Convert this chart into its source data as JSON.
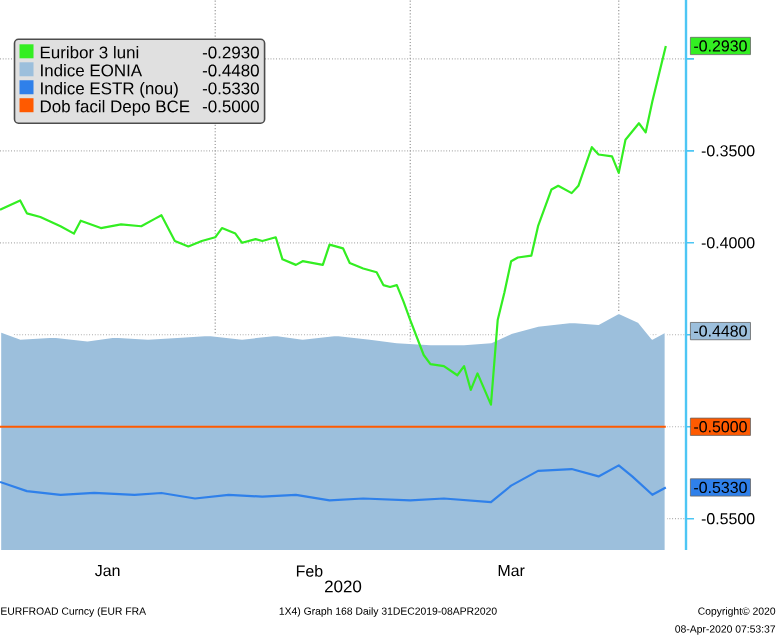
{
  "chart_data": {
    "type": "line",
    "xlabel": "2020",
    "series": [
      {
        "name": "Euribor 3 luni",
        "color": "#33ee22",
        "x": [
          "2019-12-31",
          "2020-01-03",
          "2020-01-04",
          "2020-01-06",
          "2020-01-09",
          "2020-01-11",
          "2020-01-12",
          "2020-01-15",
          "2020-01-18",
          "2020-01-21",
          "2020-01-23",
          "2020-01-24",
          "2020-01-26",
          "2020-01-28",
          "2020-01-30",
          "2020-02-01",
          "2020-02-02",
          "2020-02-04",
          "2020-02-05",
          "2020-02-07",
          "2020-02-08",
          "2020-02-10",
          "2020-02-11",
          "2020-02-13",
          "2020-02-14",
          "2020-02-17",
          "2020-02-18",
          "2020-02-20",
          "2020-02-21",
          "2020-02-23",
          "2020-02-25",
          "2020-02-26",
          "2020-02-27",
          "2020-02-28",
          "2020-02-29",
          "2020-03-01",
          "2020-03-03",
          "2020-03-04",
          "2020-03-06",
          "2020-03-08",
          "2020-03-09",
          "2020-03-10",
          "2020-03-11",
          "2020-03-13",
          "2020-03-14",
          "2020-03-15",
          "2020-03-16",
          "2020-03-17",
          "2020-03-19",
          "2020-03-20",
          "2020-03-22",
          "2020-03-23",
          "2020-03-25",
          "2020-03-26",
          "2020-03-28",
          "2020-03-29",
          "2020-03-31",
          "2020-04-01",
          "2020-04-02",
          "2020-04-04",
          "2020-04-05",
          "2020-04-06",
          "2020-04-08"
        ],
        "values": [
          -0.382,
          -0.377,
          -0.384,
          -0.386,
          -0.391,
          -0.395,
          -0.388,
          -0.392,
          -0.39,
          -0.391,
          -0.387,
          -0.385,
          -0.399,
          -0.402,
          -0.399,
          -0.397,
          -0.392,
          -0.395,
          -0.4,
          -0.398,
          -0.399,
          -0.397,
          -0.409,
          -0.412,
          -0.41,
          -0.412,
          -0.401,
          -0.403,
          -0.411,
          -0.414,
          -0.416,
          -0.423,
          -0.424,
          -0.423,
          -0.432,
          -0.442,
          -0.461,
          -0.466,
          -0.467,
          -0.472,
          -0.467,
          -0.48,
          -0.471,
          -0.488,
          -0.442,
          -0.427,
          -0.41,
          -0.408,
          -0.407,
          -0.391,
          -0.371,
          -0.369,
          -0.373,
          -0.369,
          -0.348,
          -0.352,
          -0.353,
          -0.362,
          -0.344,
          -0.335,
          -0.34,
          -0.323,
          -0.293
        ]
      },
      {
        "name": "Indice EONIA",
        "type": "area",
        "color": "#9cbfdc",
        "x": [
          "2019-12-31",
          "2020-01-03",
          "2020-01-08",
          "2020-01-13",
          "2020-01-17",
          "2020-01-22",
          "2020-01-27",
          "2020-01-31",
          "2020-02-05",
          "2020-02-10",
          "2020-02-14",
          "2020-02-19",
          "2020-02-24",
          "2020-02-28",
          "2020-03-04",
          "2020-03-09",
          "2020-03-13",
          "2020-03-16",
          "2020-03-20",
          "2020-03-25",
          "2020-03-29",
          "2020-04-01",
          "2020-04-04",
          "2020-04-06",
          "2020-04-08"
        ],
        "values": [
          -0.448,
          -0.452,
          -0.451,
          -0.453,
          -0.451,
          -0.452,
          -0.451,
          -0.45,
          -0.452,
          -0.45,
          -0.452,
          -0.45,
          -0.452,
          -0.454,
          -0.455,
          -0.455,
          -0.454,
          -0.449,
          -0.445,
          -0.443,
          -0.444,
          -0.438,
          -0.443,
          -0.452,
          -0.448
        ]
      },
      {
        "name": "Indice ESTR (nou)",
        "color": "#2f80ea",
        "x": [
          "2019-12-31",
          "2020-01-04",
          "2020-01-09",
          "2020-01-14",
          "2020-01-20",
          "2020-01-24",
          "2020-01-29",
          "2020-02-03",
          "2020-02-08",
          "2020-02-13",
          "2020-02-18",
          "2020-02-23",
          "2020-03-01",
          "2020-03-06",
          "2020-03-13",
          "2020-03-16",
          "2020-03-20",
          "2020-03-25",
          "2020-03-29",
          "2020-04-01",
          "2020-04-03",
          "2020-04-06",
          "2020-04-08"
        ],
        "values": [
          -0.53,
          -0.535,
          -0.537,
          -0.536,
          -0.537,
          -0.536,
          -0.539,
          -0.537,
          -0.538,
          -0.537,
          -0.54,
          -0.539,
          -0.54,
          -0.539,
          -0.541,
          -0.532,
          -0.524,
          -0.523,
          -0.527,
          -0.521,
          -0.527,
          -0.537,
          -0.533
        ]
      },
      {
        "name": "Dob facil Depo BCE",
        "color": "#ff5a00",
        "x": [
          "2019-12-31",
          "2020-04-08"
        ],
        "values": [
          -0.5,
          -0.5
        ]
      }
    ],
    "xlim": [
      "2019-12-31",
      "2020-04-11"
    ],
    "xticks": [
      {
        "value": "2020-01-16",
        "label": "Jan"
      },
      {
        "value": "2020-02-01",
        "label": null
      },
      {
        "value": "2020-02-15",
        "label": "Feb"
      },
      {
        "value": "2020-03-01",
        "label": null
      },
      {
        "value": "2020-03-16",
        "label": "Mar"
      },
      {
        "value": "2020-04-01",
        "label": null
      }
    ],
    "ylim": [
      -0.567,
      -0.268
    ],
    "yticks": [
      {
        "value": -0.3,
        "label": null
      },
      {
        "value": -0.35,
        "label": "-0.3500"
      },
      {
        "value": -0.4,
        "label": "-0.4000"
      },
      {
        "value": -0.45,
        "label": null
      },
      {
        "value": -0.5,
        "label": null
      },
      {
        "value": -0.55,
        "label": "-0.5500"
      }
    ],
    "grid": true,
    "legend": "top left",
    "annotations": [
      {
        "text": "-0.2930",
        "x": "2020-04-08",
        "y": -0.293
      },
      {
        "text": "-0.4480",
        "x": "2020-04-08",
        "y": -0.448
      },
      {
        "text": "-0.5330",
        "x": "2020-04-08",
        "y": -0.533
      },
      {
        "text": "-0.5000",
        "x": "2020-04-08",
        "y": -0.5
      },
      "EURFROAD Curncy (EUR FRA",
      "1X4) Graph 168  Daily 31DEC2019-08APR2020",
      "Copyright© 2020",
      "08-Apr-2020 07:53:37"
    ]
  }
}
